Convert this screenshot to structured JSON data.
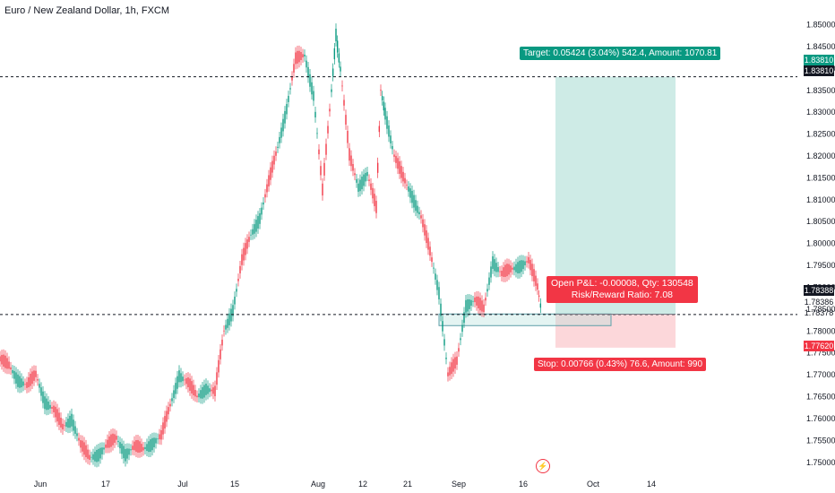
{
  "header": {
    "title": "Euro / New Zealand Dollar, 1h, FXCM"
  },
  "position": {
    "target_label": "Target: 0.05424 (3.04%) 542.4, Amount: 1070.81",
    "stop_label": "Stop: 0.00766 (0.43%) 76.6, Amount: 990",
    "pnl_line1": "Open P&L: -0.00008, Qty: 130548",
    "pnl_line2": "Risk/Reward Ratio: 7.08",
    "entry": 1.78386,
    "target": 1.8381,
    "stop": 1.7762
  },
  "price_badges": {
    "target_top": "1.83810",
    "target_bottom": "1.83810",
    "current": "1.78388",
    "entry": "1.78386",
    "dashed": "1.78378",
    "stop": "1.77620"
  },
  "chart_data": {
    "type": "line",
    "title": "Euro / New Zealand Dollar, 1h, FXCM",
    "xlabel": "",
    "ylabel": "",
    "ylim": [
      1.7475,
      1.854
    ],
    "y_ticks": [
      "1.85000",
      "1.84500",
      "1.84000",
      "1.83500",
      "1.83000",
      "1.82500",
      "1.82000",
      "1.81500",
      "1.81000",
      "1.80500",
      "1.80000",
      "1.79500",
      "1.79000",
      "1.78500",
      "1.78000",
      "1.77500",
      "1.77000",
      "1.76500",
      "1.76000",
      "1.75500",
      "1.75000"
    ],
    "x_ticks": [
      "Jun",
      "17",
      "Jul",
      "15",
      "Aug",
      "12",
      "21",
      "Sep",
      "16",
      "Oct",
      "14"
    ],
    "grid": false,
    "series": [
      {
        "values": [
          [
            0,
            1.7735
          ],
          [
            10,
            1.772
          ],
          [
            20,
            1.769
          ],
          [
            30,
            1.7675
          ],
          [
            40,
            1.77
          ],
          [
            50,
            1.764
          ],
          [
            60,
            1.762
          ],
          [
            70,
            1.758
          ],
          [
            80,
            1.76
          ],
          [
            90,
            1.754
          ],
          [
            100,
            1.751
          ],
          [
            110,
            1.752
          ],
          [
            120,
            1.754
          ],
          [
            130,
            1.7555
          ],
          [
            140,
            1.752
          ],
          [
            150,
            1.7535
          ],
          [
            160,
            1.753
          ],
          [
            170,
            1.7545
          ],
          [
            180,
            1.756
          ],
          [
            190,
            1.763
          ],
          [
            200,
            1.77
          ],
          [
            210,
            1.768
          ],
          [
            220,
            1.765
          ],
          [
            230,
            1.767
          ],
          [
            240,
            1.766
          ],
          [
            250,
            1.78
          ],
          [
            260,
            1.785
          ],
          [
            270,
            1.796
          ],
          [
            280,
            1.802
          ],
          [
            290,
            1.806
          ],
          [
            300,
            1.814
          ],
          [
            310,
            1.822
          ],
          [
            320,
            1.831
          ],
          [
            330,
            1.842
          ],
          [
            340,
            1.843
          ],
          [
            350,
            1.834
          ],
          [
            360,
            1.812
          ],
          [
            370,
            1.835
          ],
          [
            375,
            1.848
          ],
          [
            380,
            1.84
          ],
          [
            390,
            1.82
          ],
          [
            400,
            1.813
          ],
          [
            410,
            1.816
          ],
          [
            420,
            1.808
          ],
          [
            425,
            1.835
          ],
          [
            430,
            1.83
          ],
          [
            440,
            1.82
          ],
          [
            450,
            1.815
          ],
          [
            460,
            1.811
          ],
          [
            470,
            1.806
          ],
          [
            480,
            1.798
          ],
          [
            490,
            1.789
          ],
          [
            500,
            1.77
          ],
          [
            510,
            1.773
          ],
          [
            520,
            1.786
          ],
          [
            530,
            1.787
          ],
          [
            540,
            1.785
          ],
          [
            550,
            1.796
          ],
          [
            560,
            1.793
          ],
          [
            570,
            1.794
          ],
          [
            580,
            1.795
          ],
          [
            590,
            1.796
          ],
          [
            600,
            1.79
          ],
          [
            605,
            1.7839
          ]
        ]
      }
    ]
  }
}
